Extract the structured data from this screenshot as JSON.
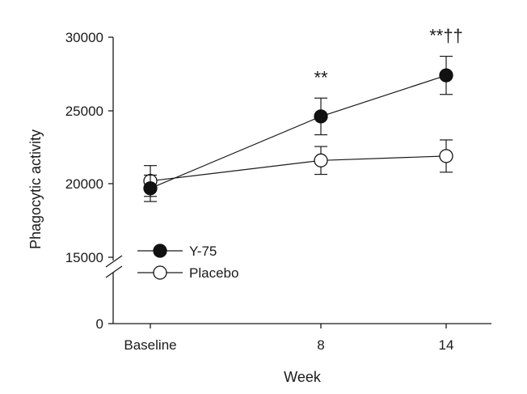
{
  "chart_data": {
    "type": "line",
    "xlabel": "Week",
    "ylabel": "Phagocytic activity",
    "categories": [
      "Baseline",
      "8",
      "14"
    ],
    "y_ticks": [
      "0",
      "15000",
      "20000",
      "25000",
      "30000"
    ],
    "y_break": "between 0 and 15000",
    "ylim_upper": [
      15000,
      30000
    ],
    "grid": false,
    "legend_position": "bottom-left",
    "series": [
      {
        "name": "Y-75",
        "marker": "filled-circle",
        "color": "#111111",
        "values": [
          19700,
          24600,
          27400
        ],
        "error": [
          900,
          1250,
          1300
        ]
      },
      {
        "name": "Placebo",
        "marker": "open-circle",
        "color": "#111111",
        "values": [
          20200,
          21600,
          21900
        ],
        "error": [
          1050,
          950,
          1100
        ]
      }
    ],
    "annotations": [
      {
        "category": "8",
        "text": "**"
      },
      {
        "category": "14",
        "text": "**††"
      }
    ]
  }
}
